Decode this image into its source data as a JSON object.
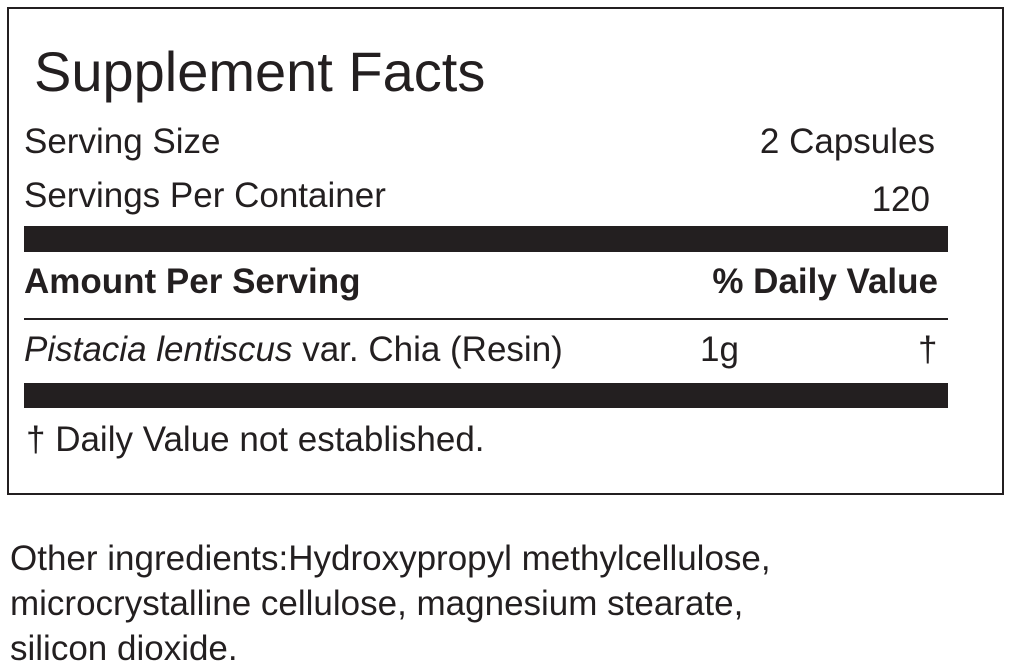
{
  "label": {
    "title": "Supplement Facts",
    "serving_size": {
      "label": "Serving Size",
      "value": "2 Capsules"
    },
    "servings_per_container": {
      "label": "Servings Per Container",
      "value": "120"
    },
    "header": {
      "amount": "Amount Per Serving",
      "daily_value": "% Daily Value"
    },
    "ingredients": [
      {
        "name_italic": "Pistacia lentiscus",
        "name_rest": "var. Chia (Resin)",
        "amount": "1g",
        "daily_value": "†"
      }
    ],
    "footnote": "† Daily Value not established."
  },
  "other_ingredients": {
    "lines": [
      "Other ingredients:Hydroxypropyl methylcellulose,",
      "microcrystalline cellulose, magnesium stearate,",
      "silicon dioxide."
    ]
  }
}
